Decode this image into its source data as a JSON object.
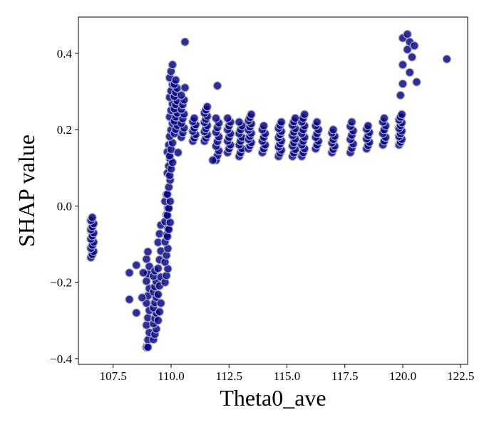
{
  "chart_data": {
    "type": "scatter",
    "title": "",
    "xlabel": "Theta0_ave",
    "ylabel": "SHAP value",
    "xlim": [
      106.0,
      122.8
    ],
    "ylim": [
      -0.415,
      0.495
    ],
    "xticks": [
      107.5,
      110.0,
      112.5,
      115.0,
      117.5,
      120.0,
      122.5
    ],
    "xtick_labels": [
      "107.5",
      "110.0",
      "112.5",
      "115.0",
      "117.5",
      "120.0",
      "122.5"
    ],
    "yticks": [
      -0.4,
      -0.2,
      0.0,
      0.2,
      0.4
    ],
    "ytick_labels": [
      "−0.4",
      "−0.2",
      "0.0",
      "0.2",
      "0.4"
    ],
    "grid": false,
    "point_color": "#000080",
    "point_edge_color": "#a9a9c8",
    "clusters": [
      {
        "x": 106.6,
        "y_min": -0.135,
        "y_max": -0.03,
        "count": 14
      },
      {
        "x": 109.0,
        "y_min": -0.37,
        "y_max": -0.12,
        "count": 14
      },
      {
        "x": 109.3,
        "y_min": -0.35,
        "y_max": -0.17,
        "count": 14
      },
      {
        "x": 109.5,
        "y_min": -0.3,
        "y_max": -0.05,
        "count": 12
      },
      {
        "x": 109.8,
        "y_min": -0.2,
        "y_max": 0.03,
        "count": 14
      },
      {
        "x": 109.9,
        "y_min": -0.08,
        "y_max": 0.16,
        "count": 14
      },
      {
        "x": 110.0,
        "y_min": 0.08,
        "y_max": 0.37,
        "count": 18
      },
      {
        "x": 110.2,
        "y_min": 0.19,
        "y_max": 0.33,
        "count": 14
      },
      {
        "x": 110.5,
        "y_min": 0.18,
        "y_max": 0.29,
        "count": 10
      },
      {
        "x": 111.0,
        "y_min": 0.17,
        "y_max": 0.23,
        "count": 8
      },
      {
        "x": 111.5,
        "y_min": 0.17,
        "y_max": 0.26,
        "count": 12
      },
      {
        "x": 112.0,
        "y_min": 0.12,
        "y_max": 0.23,
        "count": 10
      },
      {
        "x": 112.5,
        "y_min": 0.14,
        "y_max": 0.23,
        "count": 10
      },
      {
        "x": 113.0,
        "y_min": 0.13,
        "y_max": 0.22,
        "count": 10
      },
      {
        "x": 113.4,
        "y_min": 0.15,
        "y_max": 0.24,
        "count": 12
      },
      {
        "x": 114.0,
        "y_min": 0.14,
        "y_max": 0.21,
        "count": 8
      },
      {
        "x": 114.7,
        "y_min": 0.13,
        "y_max": 0.22,
        "count": 12
      },
      {
        "x": 115.3,
        "y_min": 0.13,
        "y_max": 0.23,
        "count": 12
      },
      {
        "x": 115.7,
        "y_min": 0.13,
        "y_max": 0.24,
        "count": 12
      },
      {
        "x": 116.3,
        "y_min": 0.15,
        "y_max": 0.22,
        "count": 8
      },
      {
        "x": 117.0,
        "y_min": 0.14,
        "y_max": 0.2,
        "count": 8
      },
      {
        "x": 117.8,
        "y_min": 0.14,
        "y_max": 0.22,
        "count": 8
      },
      {
        "x": 118.5,
        "y_min": 0.15,
        "y_max": 0.21,
        "count": 8
      },
      {
        "x": 119.2,
        "y_min": 0.16,
        "y_max": 0.23,
        "count": 8
      },
      {
        "x": 119.9,
        "y_min": 0.16,
        "y_max": 0.24,
        "count": 12
      }
    ],
    "points": [
      {
        "x": 108.2,
        "y": -0.175
      },
      {
        "x": 108.2,
        "y": -0.245
      },
      {
        "x": 108.5,
        "y": -0.155
      },
      {
        "x": 108.5,
        "y": -0.28
      },
      {
        "x": 108.8,
        "y": -0.175
      },
      {
        "x": 108.75,
        "y": -0.24
      },
      {
        "x": 109.0,
        "y": -0.37
      },
      {
        "x": 110.6,
        "y": 0.43
      },
      {
        "x": 110.6,
        "y": 0.31
      },
      {
        "x": 110.3,
        "y": 0.14
      },
      {
        "x": 111.8,
        "y": 0.12
      },
      {
        "x": 112.0,
        "y": 0.315
      },
      {
        "x": 119.9,
        "y": 0.29
      },
      {
        "x": 120.0,
        "y": 0.32
      },
      {
        "x": 120.0,
        "y": 0.37
      },
      {
        "x": 120.0,
        "y": 0.44
      },
      {
        "x": 120.2,
        "y": 0.45
      },
      {
        "x": 120.2,
        "y": 0.41
      },
      {
        "x": 120.3,
        "y": 0.43
      },
      {
        "x": 120.3,
        "y": 0.35
      },
      {
        "x": 120.4,
        "y": 0.39
      },
      {
        "x": 120.5,
        "y": 0.42
      },
      {
        "x": 120.6,
        "y": 0.325
      },
      {
        "x": 121.9,
        "y": 0.385
      }
    ]
  }
}
